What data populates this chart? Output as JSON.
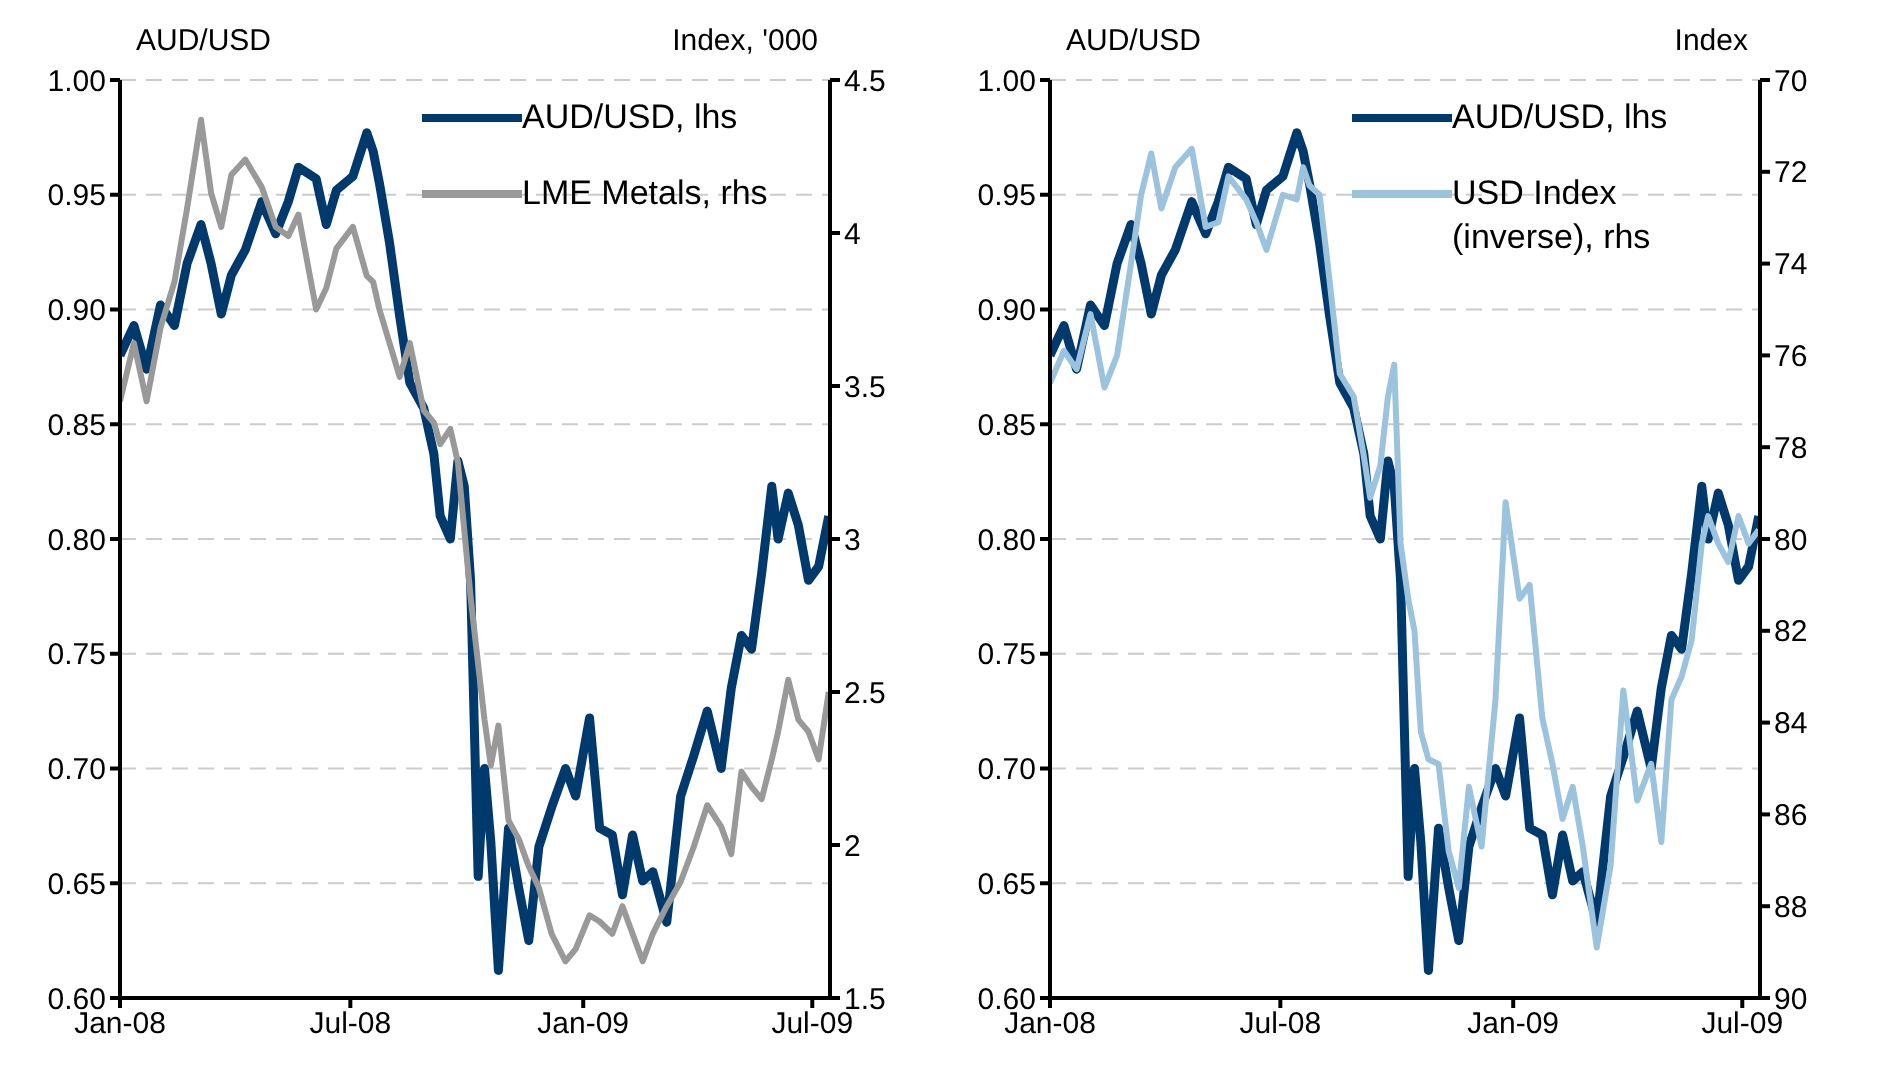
{
  "chart_data": [
    {
      "type": "line",
      "ylabel": "AUD/USD",
      "y2label": "Index, '000",
      "x": [
        "2008-01-01",
        "2008-01-12",
        "2008-01-22",
        "2008-02-02",
        "2008-02-13",
        "2008-02-23",
        "2008-03-05",
        "2008-03-13",
        "2008-03-21",
        "2008-03-29",
        "2008-04-09",
        "2008-04-22",
        "2008-05-03",
        "2008-05-13",
        "2008-05-21",
        "2008-06-04",
        "2008-06-12",
        "2008-06-20",
        "2008-07-03",
        "2008-07-14",
        "2008-07-19",
        "2008-07-24",
        "2008-08-01",
        "2008-08-09",
        "2008-08-17",
        "2008-08-28",
        "2008-09-05",
        "2008-09-10",
        "2008-09-18",
        "2008-09-24",
        "2008-09-29",
        "2008-10-04",
        "2008-10-10",
        "2008-10-15",
        "2008-10-20",
        "2008-10-26",
        "2008-11-03",
        "2008-11-11",
        "2008-11-19",
        "2008-11-27",
        "2008-12-07",
        "2008-12-18",
        "2008-12-26",
        "2009-01-06",
        "2009-01-14",
        "2009-01-24",
        "2009-02-01",
        "2009-02-09",
        "2009-02-17",
        "2009-02-25",
        "2009-03-08",
        "2009-03-19",
        "2009-03-29",
        "2009-04-09",
        "2009-04-20",
        "2009-04-28",
        "2009-05-06",
        "2009-05-14",
        "2009-05-22",
        "2009-05-30",
        "2009-06-04",
        "2009-06-12",
        "2009-06-20",
        "2009-06-28",
        "2009-07-06",
        "2009-07-14"
      ],
      "series": [
        {
          "name": "AUD/USD, lhs",
          "color": "#003a6c",
          "axis": "y",
          "values": [
            0.88,
            0.893,
            0.874,
            0.902,
            0.893,
            0.92,
            0.937,
            0.92,
            0.898,
            0.915,
            0.926,
            0.947,
            0.933,
            0.947,
            0.962,
            0.957,
            0.937,
            0.952,
            0.958,
            0.977,
            0.969,
            0.955,
            0.929,
            0.897,
            0.868,
            0.857,
            0.837,
            0.81,
            0.8,
            0.834,
            0.823,
            0.782,
            0.653,
            0.7,
            0.668,
            0.612,
            0.674,
            0.648,
            0.625,
            0.666,
            0.683,
            0.7,
            0.688,
            0.722,
            0.674,
            0.671,
            0.645,
            0.671,
            0.651,
            0.655,
            0.633,
            0.688,
            0.705,
            0.725,
            0.7,
            0.735,
            0.758,
            0.752,
            0.785,
            0.823,
            0.8,
            0.82,
            0.806,
            0.782,
            0.788,
            0.81
          ]
        },
        {
          "name": "LME Metals, rhs",
          "color": "#999999",
          "axis": "y2",
          "values": [
            3.45,
            3.64,
            3.45,
            3.69,
            3.84,
            4.08,
            4.37,
            4.13,
            4.02,
            4.19,
            4.24,
            4.15,
            4.02,
            3.99,
            4.06,
            3.75,
            3.82,
            3.95,
            4.02,
            3.86,
            3.84,
            3.75,
            3.64,
            3.53,
            3.64,
            3.42,
            3.38,
            3.31,
            3.36,
            3.25,
            3.03,
            2.81,
            2.59,
            2.41,
            2.26,
            2.39,
            2.08,
            2.02,
            1.93,
            1.86,
            1.71,
            1.62,
            1.66,
            1.77,
            1.75,
            1.71,
            1.8,
            1.71,
            1.62,
            1.71,
            1.8,
            1.88,
            1.99,
            2.13,
            2.06,
            1.97,
            2.24,
            2.19,
            2.15,
            2.28,
            2.37,
            2.54,
            2.41,
            2.37,
            2.28,
            2.5
          ]
        }
      ],
      "xlim": [
        "2008-01-01",
        "2009-07-15"
      ],
      "xticks": [
        {
          "value": "2008-01-01",
          "label": "Jan-08"
        },
        {
          "value": "2008-07-01",
          "label": "Jul-08"
        },
        {
          "value": "2009-01-01",
          "label": "Jan-09"
        },
        {
          "value": "2009-07-01",
          "label": "Jul-09"
        }
      ],
      "ylim": [
        0.6,
        1.0
      ],
      "yticks": [
        {
          "value": 0.6,
          "label": "0.60"
        },
        {
          "value": 0.65,
          "label": "0.65"
        },
        {
          "value": 0.7,
          "label": "0.70"
        },
        {
          "value": 0.75,
          "label": "0.75"
        },
        {
          "value": 0.8,
          "label": "0.80"
        },
        {
          "value": 0.85,
          "label": "0.85"
        },
        {
          "value": 0.9,
          "label": "0.90"
        },
        {
          "value": 0.95,
          "label": "0.95"
        },
        {
          "value": 1.0,
          "label": "1.00"
        }
      ],
      "y2lim": [
        1.5,
        4.5
      ],
      "y2ticks": [
        1.5,
        2.0,
        2.5,
        3.0,
        3.5,
        4.0,
        4.5
      ],
      "grid": "y",
      "legend": "top right",
      "line_style": "solid",
      "marker": "none"
    },
    {
      "type": "line",
      "ylabel": "AUD/USD",
      "y2label": "Index",
      "x": [
        "2008-01-01",
        "2008-01-12",
        "2008-01-22",
        "2008-02-02",
        "2008-02-13",
        "2008-02-23",
        "2008-03-05",
        "2008-03-13",
        "2008-03-21",
        "2008-03-29",
        "2008-04-09",
        "2008-04-22",
        "2008-05-03",
        "2008-05-13",
        "2008-05-21",
        "2008-06-04",
        "2008-06-12",
        "2008-06-20",
        "2008-07-03",
        "2008-07-14",
        "2008-07-19",
        "2008-07-24",
        "2008-08-01",
        "2008-08-09",
        "2008-08-17",
        "2008-08-28",
        "2008-09-05",
        "2008-09-10",
        "2008-09-18",
        "2008-09-24",
        "2008-09-29",
        "2008-10-04",
        "2008-10-10",
        "2008-10-15",
        "2008-10-20",
        "2008-10-26",
        "2008-11-03",
        "2008-11-11",
        "2008-11-19",
        "2008-11-27",
        "2008-12-07",
        "2008-12-18",
        "2008-12-26",
        "2009-01-06",
        "2009-01-14",
        "2009-01-24",
        "2009-02-01",
        "2009-02-09",
        "2009-02-17",
        "2009-02-25",
        "2009-03-08",
        "2009-03-19",
        "2009-03-29",
        "2009-04-09",
        "2009-04-20",
        "2009-04-28",
        "2009-05-06",
        "2009-05-14",
        "2009-05-22",
        "2009-05-30",
        "2009-06-04",
        "2009-06-12",
        "2009-06-20",
        "2009-06-28",
        "2009-07-06",
        "2009-07-14"
      ],
      "series": [
        {
          "name": "AUD/USD, lhs",
          "color": "#003a6c",
          "axis": "y",
          "values": [
            0.88,
            0.893,
            0.874,
            0.902,
            0.893,
            0.92,
            0.937,
            0.92,
            0.898,
            0.915,
            0.926,
            0.947,
            0.933,
            0.947,
            0.962,
            0.957,
            0.937,
            0.952,
            0.958,
            0.977,
            0.969,
            0.955,
            0.929,
            0.897,
            0.868,
            0.857,
            0.837,
            0.81,
            0.8,
            0.834,
            0.823,
            0.782,
            0.653,
            0.7,
            0.668,
            0.612,
            0.674,
            0.648,
            0.625,
            0.666,
            0.683,
            0.7,
            0.688,
            0.722,
            0.674,
            0.671,
            0.645,
            0.671,
            0.651,
            0.655,
            0.633,
            0.688,
            0.705,
            0.725,
            0.7,
            0.735,
            0.758,
            0.752,
            0.785,
            0.823,
            0.8,
            0.82,
            0.806,
            0.782,
            0.788,
            0.81
          ]
        },
        {
          "name": "USD Index (inverse), rhs",
          "color": "#9cc3dd",
          "axis": "y2",
          "values": [
            76.6,
            75.9,
            76.3,
            75.1,
            76.7,
            76.0,
            74.0,
            72.5,
            71.6,
            72.8,
            71.9,
            71.5,
            73.2,
            73.1,
            72.1,
            72.6,
            73.1,
            73.7,
            72.5,
            72.6,
            71.9,
            72.3,
            72.5,
            74.4,
            76.4,
            76.9,
            78.2,
            79.1,
            78.4,
            76.9,
            76.2,
            80.1,
            81.3,
            82.0,
            84.2,
            84.8,
            84.9,
            86.8,
            87.6,
            85.4,
            86.7,
            83.5,
            79.2,
            81.3,
            81.0,
            83.9,
            84.9,
            86.1,
            85.4,
            86.7,
            88.9,
            87.1,
            83.3,
            85.7,
            84.9,
            86.6,
            83.5,
            83.0,
            82.2,
            80.1,
            79.5,
            80.1,
            80.5,
            79.5,
            80.1,
            79.8
          ]
        }
      ],
      "xlim": [
        "2008-01-01",
        "2009-07-15"
      ],
      "xticks": [
        {
          "value": "2008-01-01",
          "label": "Jan-08"
        },
        {
          "value": "2008-07-01",
          "label": "Jul-08"
        },
        {
          "value": "2009-01-01",
          "label": "Jan-09"
        },
        {
          "value": "2009-07-01",
          "label": "Jul-09"
        }
      ],
      "ylim": [
        0.6,
        1.0
      ],
      "yticks": [
        {
          "value": 0.6,
          "label": "0.60"
        },
        {
          "value": 0.65,
          "label": "0.65"
        },
        {
          "value": 0.7,
          "label": "0.70"
        },
        {
          "value": 0.75,
          "label": "0.75"
        },
        {
          "value": 0.8,
          "label": "0.80"
        },
        {
          "value": 0.85,
          "label": "0.85"
        },
        {
          "value": 0.9,
          "label": "0.90"
        },
        {
          "value": 0.95,
          "label": "0.95"
        },
        {
          "value": 1.0,
          "label": "1.00"
        }
      ],
      "y2lim": [
        90,
        70
      ],
      "y2ticks": [
        70,
        72,
        74,
        76,
        78,
        80,
        82,
        84,
        86,
        88,
        90
      ],
      "grid": "y",
      "legend": "top right",
      "line_style": "solid",
      "marker": "none"
    }
  ]
}
